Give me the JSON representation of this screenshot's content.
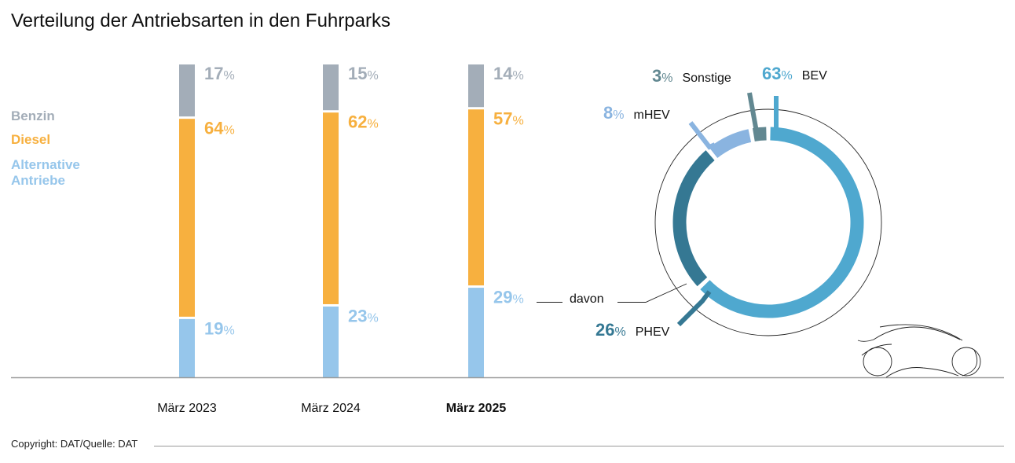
{
  "chart_data": [
    {
      "type": "bar",
      "stacked": true,
      "title": "Verteilung der Antriebsarten in den Fuhrparks",
      "categories": [
        "März 2023",
        "März 2024",
        "März 2025"
      ],
      "highlight_category": "März 2025",
      "unit": "%",
      "ylim": [
        0,
        100
      ],
      "grid": false,
      "legend_position": "left",
      "series": [
        {
          "name": "Benzin",
          "color": "#a3adb8",
          "values": [
            17,
            15,
            14
          ]
        },
        {
          "name": "Diesel",
          "color": "#f7b03f",
          "values": [
            64,
            62,
            57
          ]
        },
        {
          "name": "Alternative Antriebe",
          "name_lines": [
            "Alternative",
            "Antriebe"
          ],
          "color": "#96c6eb",
          "values": [
            19,
            23,
            29
          ]
        }
      ]
    },
    {
      "type": "pie",
      "variant": "donut",
      "connector_label": "davon",
      "unit": "%",
      "slices": [
        {
          "name": "BEV",
          "value": 63,
          "color": "#4fa8cf"
        },
        {
          "name": "PHEV",
          "value": 26,
          "color": "#357893"
        },
        {
          "name": "mHEV",
          "value": 8,
          "color": "#8ab4e0"
        },
        {
          "name": "Sonstige",
          "value": 3,
          "color": "#628891"
        }
      ]
    }
  ],
  "footer": {
    "copyright": "Copyright: DAT/Quelle: DAT"
  }
}
